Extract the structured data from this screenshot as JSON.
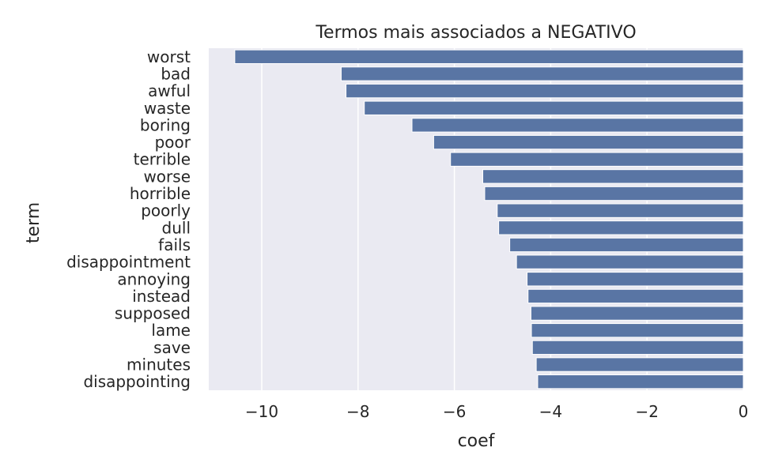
{
  "chart_data": {
    "type": "bar",
    "orientation": "horizontal",
    "title": "Termos mais associados a NEGATIVO",
    "xlabel": "coef",
    "ylabel": "term",
    "xlim": [
      -11.1,
      0
    ],
    "xticks": [
      -10,
      -8,
      -6,
      -4,
      -2,
      0
    ],
    "xtick_labels": [
      "−10",
      "−8",
      "−6",
      "−4",
      "−2",
      "0"
    ],
    "grid": true,
    "bar_color": "#5975a4",
    "background_color": "#eaeaf2",
    "categories": [
      "worst",
      "bad",
      "awful",
      "waste",
      "boring",
      "poor",
      "terrible",
      "worse",
      "horrible",
      "poorly",
      "dull",
      "fails",
      "disappointment",
      "annoying",
      "instead",
      "supposed",
      "lame",
      "save",
      "minutes",
      "disappointing"
    ],
    "values": [
      -10.56,
      -8.35,
      -8.25,
      -7.87,
      -6.88,
      -6.43,
      -6.08,
      -5.41,
      -5.37,
      -5.11,
      -5.08,
      -4.85,
      -4.71,
      -4.49,
      -4.47,
      -4.41,
      -4.4,
      -4.38,
      -4.3,
      -4.27
    ]
  }
}
